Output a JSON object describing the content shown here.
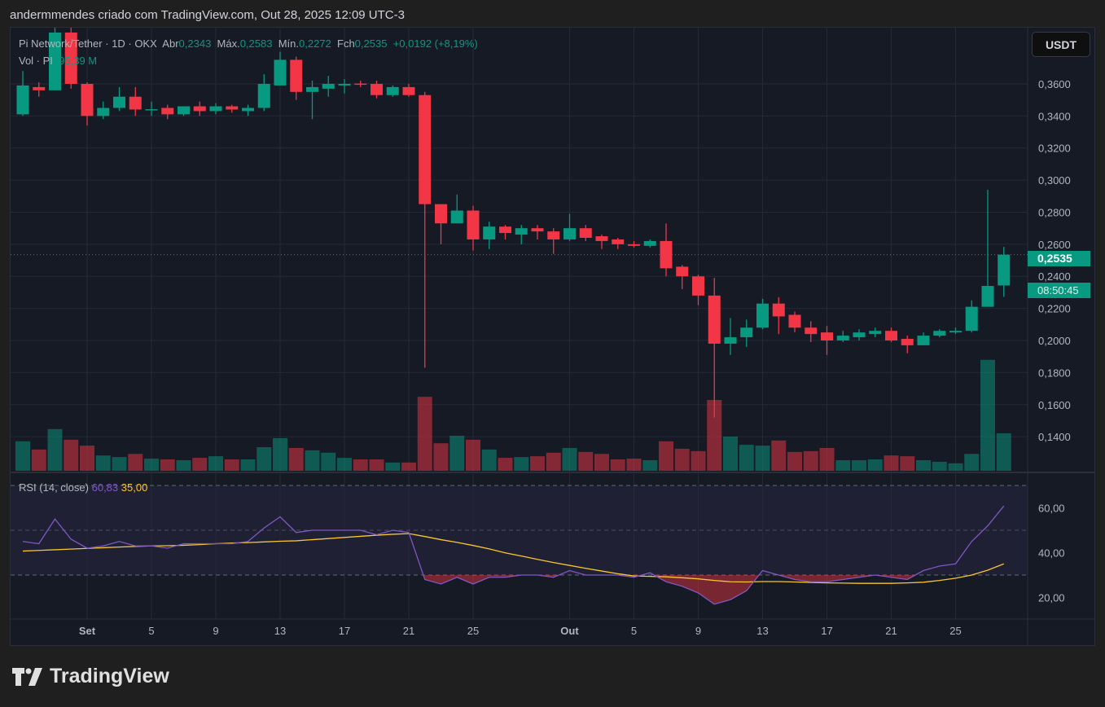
{
  "header": {
    "caption": "andermmendes criado com TradingView.com, Out 28, 2025 12:09 UTC-3"
  },
  "legend": {
    "symbol": "Pi Network/Tether · 1D · OKX",
    "open_label": "Abr",
    "open": "0,2343",
    "high_label": "Máx.",
    "high": "0,2583",
    "low_label": "Mín.",
    "low": "0,2272",
    "close_label": "Fch",
    "close": "0,2535",
    "change": "+0,0192 (+8,19%)",
    "vol_label": "Vol · PI",
    "vol_value": "95,39 M"
  },
  "rsi_legend": {
    "label": "RSI (14, close)",
    "rsi_value": "60,83",
    "ma_value": "35,00"
  },
  "currency_button": "USDT",
  "price_tag": {
    "price": "0,2535",
    "countdown": "08:50:45"
  },
  "logo": {
    "text": "TradingView"
  },
  "colors": {
    "up": "#089981",
    "down": "#f23645",
    "rsi": "#7e57c2",
    "rsi_ma": "#f7c62f",
    "background": "#161a25",
    "grid": "#252936"
  },
  "chart_data": {
    "type": "candlestick",
    "start_date": "2025-08-28",
    "interval": "1D",
    "price_ticks": [
      "0,1400",
      "0,1600",
      "0,1800",
      "0,2000",
      "0,2200",
      "0,2400",
      "0,2600",
      "0,2800",
      "0,3000",
      "0,3200",
      "0,3400",
      "0,3600"
    ],
    "price_tick_values": [
      0.14,
      0.16,
      0.18,
      0.2,
      0.22,
      0.24,
      0.26,
      0.28,
      0.3,
      0.32,
      0.34,
      0.36
    ],
    "time_ticks": [
      {
        "label": "Set",
        "index": 4
      },
      {
        "label": "5",
        "index": 8
      },
      {
        "label": "9",
        "index": 12
      },
      {
        "label": "13",
        "index": 16
      },
      {
        "label": "17",
        "index": 20
      },
      {
        "label": "21",
        "index": 24
      },
      {
        "label": "25",
        "index": 28
      },
      {
        "label": "Out",
        "index": 34
      },
      {
        "label": "5",
        "index": 38
      },
      {
        "label": "9",
        "index": 42
      },
      {
        "label": "13",
        "index": 46
      },
      {
        "label": "17",
        "index": 50
      },
      {
        "label": "21",
        "index": 54
      },
      {
        "label": "25",
        "index": 58
      }
    ],
    "rsi_ticks": [
      "20,00",
      "40,00",
      "60,00"
    ],
    "rsi_tick_values": [
      20,
      40,
      60
    ],
    "rsi_bands": [
      30,
      50,
      70
    ],
    "ohlc": [
      [
        0.341,
        0.368,
        0.34,
        0.359
      ],
      [
        0.358,
        0.361,
        0.352,
        0.356
      ],
      [
        0.356,
        0.395,
        0.356,
        0.392
      ],
      [
        0.392,
        0.395,
        0.357,
        0.36
      ],
      [
        0.36,
        0.361,
        0.334,
        0.34
      ],
      [
        0.34,
        0.349,
        0.338,
        0.345
      ],
      [
        0.345,
        0.358,
        0.343,
        0.352
      ],
      [
        0.352,
        0.358,
        0.34,
        0.344
      ],
      [
        0.344,
        0.349,
        0.34,
        0.3442
      ],
      [
        0.345,
        0.347,
        0.338,
        0.341
      ],
      [
        0.341,
        0.346,
        0.34,
        0.346
      ],
      [
        0.346,
        0.349,
        0.34,
        0.343
      ],
      [
        0.343,
        0.348,
        0.341,
        0.346
      ],
      [
        0.346,
        0.347,
        0.342,
        0.344
      ],
      [
        0.343,
        0.347,
        0.34,
        0.345
      ],
      [
        0.345,
        0.366,
        0.343,
        0.36
      ],
      [
        0.359,
        0.38,
        0.359,
        0.375
      ],
      [
        0.375,
        0.377,
        0.35,
        0.355
      ],
      [
        0.355,
        0.362,
        0.338,
        0.358
      ],
      [
        0.357,
        0.365,
        0.352,
        0.36
      ],
      [
        0.359,
        0.363,
        0.354,
        0.36
      ],
      [
        0.3602,
        0.362,
        0.358,
        0.36
      ],
      [
        0.36,
        0.362,
        0.351,
        0.353
      ],
      [
        0.353,
        0.359,
        0.352,
        0.358
      ],
      [
        0.358,
        0.36,
        0.352,
        0.353
      ],
      [
        0.353,
        0.355,
        0.183,
        0.285
      ],
      [
        0.285,
        0.285,
        0.26,
        0.273
      ],
      [
        0.273,
        0.291,
        0.273,
        0.281
      ],
      [
        0.281,
        0.284,
        0.256,
        0.263
      ],
      [
        0.263,
        0.274,
        0.257,
        0.271
      ],
      [
        0.271,
        0.272,
        0.263,
        0.267
      ],
      [
        0.266,
        0.272,
        0.26,
        0.27
      ],
      [
        0.27,
        0.272,
        0.263,
        0.268
      ],
      [
        0.268,
        0.27,
        0.254,
        0.263
      ],
      [
        0.263,
        0.279,
        0.262,
        0.27
      ],
      [
        0.27,
        0.272,
        0.262,
        0.264
      ],
      [
        0.265,
        0.266,
        0.257,
        0.262
      ],
      [
        0.263,
        0.264,
        0.257,
        0.26
      ],
      [
        0.26,
        0.262,
        0.258,
        0.259
      ],
      [
        0.259,
        0.263,
        0.258,
        0.262
      ],
      [
        0.262,
        0.273,
        0.24,
        0.245
      ],
      [
        0.246,
        0.247,
        0.232,
        0.24
      ],
      [
        0.24,
        0.241,
        0.222,
        0.228
      ],
      [
        0.228,
        0.239,
        0.152,
        0.198
      ],
      [
        0.198,
        0.214,
        0.191,
        0.202
      ],
      [
        0.202,
        0.213,
        0.196,
        0.208
      ],
      [
        0.208,
        0.226,
        0.207,
        0.223
      ],
      [
        0.223,
        0.227,
        0.204,
        0.215
      ],
      [
        0.216,
        0.218,
        0.205,
        0.208
      ],
      [
        0.208,
        0.212,
        0.199,
        0.204
      ],
      [
        0.205,
        0.209,
        0.191,
        0.2
      ],
      [
        0.2,
        0.206,
        0.199,
        0.203
      ],
      [
        0.202,
        0.207,
        0.2,
        0.205
      ],
      [
        0.204,
        0.208,
        0.202,
        0.206
      ],
      [
        0.206,
        0.208,
        0.199,
        0.2
      ],
      [
        0.201,
        0.203,
        0.192,
        0.197
      ],
      [
        0.197,
        0.205,
        0.197,
        0.203
      ],
      [
        0.203,
        0.207,
        0.202,
        0.206
      ],
      [
        0.205,
        0.208,
        0.204,
        0.206
      ],
      [
        0.206,
        0.225,
        0.205,
        0.221
      ],
      [
        0.221,
        0.294,
        0.221,
        0.234
      ],
      [
        0.2343,
        0.2583,
        0.2272,
        0.2535
      ]
    ],
    "volume_millions": [
      75,
      54,
      106,
      79,
      64,
      39,
      35,
      43,
      31,
      29,
      27,
      33,
      37,
      29,
      29,
      60,
      83,
      58,
      52,
      46,
      33,
      29,
      29,
      21,
      21,
      188,
      70,
      89,
      79,
      54,
      33,
      35,
      37,
      46,
      58,
      48,
      43,
      29,
      31,
      27,
      75,
      56,
      50,
      180,
      87,
      66,
      64,
      77,
      48,
      50,
      58,
      27,
      27,
      29,
      39,
      37,
      27,
      23,
      19,
      43,
      282,
      95.39
    ],
    "rsi": [
      45,
      44,
      55,
      46,
      42,
      43,
      45,
      43,
      43,
      42,
      44,
      44,
      44,
      44,
      45,
      51,
      56,
      49,
      50,
      50,
      50,
      50,
      48,
      50,
      49,
      28,
      26,
      29,
      26,
      29,
      29,
      30,
      30,
      29,
      32,
      30,
      30,
      30,
      29,
      31,
      27,
      25,
      22,
      17,
      19,
      23,
      32,
      30,
      28,
      27,
      27,
      28,
      29,
      30,
      29,
      28,
      32,
      34,
      35,
      45,
      52,
      60.83
    ],
    "rsi_ma": [
      40.7,
      41,
      41.3,
      41.6,
      41.9,
      42.2,
      42.5,
      42.8,
      43,
      43.1,
      43.3,
      43.6,
      44,
      44.3,
      44.5,
      44.8,
      45.1,
      45.3,
      45.8,
      46.3,
      46.8,
      47.3,
      47.8,
      48.2,
      48.5,
      47.2,
      45.8,
      44.6,
      43.2,
      41.7,
      39.9,
      38.5,
      37,
      35.6,
      34.3,
      33,
      31.8,
      30.6,
      29.6,
      29.4,
      29.2,
      28.8,
      28.3,
      27.6,
      27,
      26.9,
      27.1,
      27.1,
      26.9,
      26.7,
      26.5,
      26.4,
      26.3,
      26.3,
      26.3,
      26.5,
      26.8,
      27.6,
      28.6,
      30,
      32.2,
      35
    ],
    "last_price": 0.2535
  }
}
